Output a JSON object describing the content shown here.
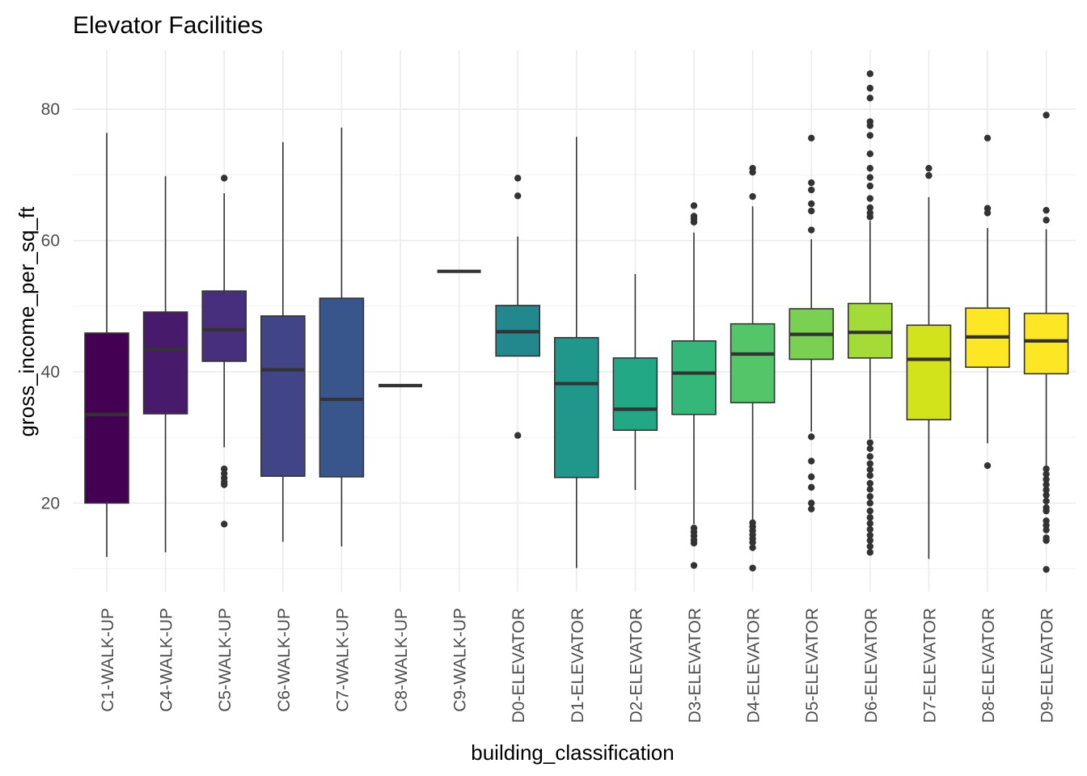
{
  "chart_data": {
    "type": "boxplot",
    "title": "Elevator Facilities",
    "xlabel": "building_classification",
    "ylabel": "gross_income_per_sq_ft",
    "ylim": [
      6.5,
      89
    ],
    "yticks": [
      20,
      40,
      60,
      80
    ],
    "grid": true,
    "legend": "none",
    "categories": [
      "C1-WALK-UP",
      "C4-WALK-UP",
      "C5-WALK-UP",
      "C6-WALK-UP",
      "C7-WALK-UP",
      "C8-WALK-UP",
      "C9-WALK-UP",
      "D0-ELEVATOR",
      "D1-ELEVATOR",
      "D2-ELEVATOR",
      "D3-ELEVATOR",
      "D4-ELEVATOR",
      "D5-ELEVATOR",
      "D6-ELEVATOR",
      "D7-ELEVATOR",
      "D8-ELEVATOR",
      "D9-ELEVATOR"
    ],
    "colors": [
      "#440154",
      "#481a6c",
      "#472f7d",
      "#414487",
      "#39568c",
      "#31688e",
      "#2a788e",
      "#23888e",
      "#1f988b",
      "#22a884",
      "#35b779",
      "#54c568",
      "#7ad151",
      "#a5db36",
      "#d2e21b",
      "#fde725",
      "#fde725"
    ],
    "boxes": [
      {
        "min": 11.8,
        "q1": 20.0,
        "median": 33.5,
        "q3": 45.9,
        "max": 76.4,
        "outliers": []
      },
      {
        "min": 12.5,
        "q1": 33.6,
        "median": 43.4,
        "q3": 49.1,
        "max": 69.8,
        "outliers": []
      },
      {
        "min": 28.5,
        "q1": 41.6,
        "median": 46.4,
        "q3": 52.3,
        "max": 67.2,
        "outliers": [
          69.5,
          25.2,
          24.5,
          23.8,
          23.2,
          22.8,
          16.8
        ]
      },
      {
        "min": 14.1,
        "q1": 24.1,
        "median": 40.3,
        "q3": 48.5,
        "max": 75.0,
        "outliers": []
      },
      {
        "min": 13.4,
        "q1": 24.0,
        "median": 35.8,
        "q3": 51.2,
        "max": 77.2,
        "outliers": []
      },
      {
        "min": 37.9,
        "q1": 37.9,
        "median": 37.9,
        "q3": 37.9,
        "max": 37.9,
        "outliers": []
      },
      {
        "min": 55.3,
        "q1": 55.3,
        "median": 55.3,
        "q3": 55.3,
        "max": 55.3,
        "outliers": []
      },
      {
        "min": 42.4,
        "q1": 42.4,
        "median": 46.1,
        "q3": 50.1,
        "max": 60.6,
        "outliers": [
          69.5,
          66.8,
          30.3
        ]
      },
      {
        "min": 10.1,
        "q1": 23.9,
        "median": 38.2,
        "q3": 45.2,
        "max": 75.8,
        "outliers": []
      },
      {
        "min": 22.0,
        "q1": 31.1,
        "median": 34.3,
        "q3": 42.1,
        "max": 54.9,
        "outliers": []
      },
      {
        "min": 16.8,
        "q1": 33.5,
        "median": 39.8,
        "q3": 44.7,
        "max": 61.2,
        "outliers": [
          65.3,
          63.7,
          63.3,
          62.8,
          16.2,
          15.6,
          15.0,
          14.4,
          13.9,
          10.5
        ]
      },
      {
        "min": 17.4,
        "q1": 35.3,
        "median": 42.7,
        "q3": 47.3,
        "max": 65.2,
        "outliers": [
          71.0,
          70.4,
          66.7,
          17.0,
          16.4,
          15.8,
          15.2,
          14.6,
          14.0,
          13.2,
          10.1
        ]
      },
      {
        "min": 30.9,
        "q1": 41.9,
        "median": 45.7,
        "q3": 49.6,
        "max": 60.2,
        "outliers": [
          75.6,
          68.8,
          67.7,
          65.6,
          64.5,
          61.6,
          30.1,
          26.4,
          24.0,
          22.4,
          20.0,
          19.1
        ]
      },
      {
        "min": 29.8,
        "q1": 42.1,
        "median": 46.0,
        "q3": 50.4,
        "max": 63.0,
        "outliers": [
          85.4,
          83.2,
          81.7,
          78.1,
          77.5,
          76.0,
          73.2,
          71.0,
          69.6,
          68.3,
          66.4,
          65.0,
          64.2,
          63.6,
          29.2,
          28.3,
          27.1,
          26.0,
          25.1,
          24.2,
          23.0,
          22.1,
          21.0,
          20.0,
          18.8,
          17.8,
          16.9,
          16.0,
          15.1,
          14.3,
          13.4,
          12.5
        ]
      },
      {
        "min": 11.5,
        "q1": 32.7,
        "median": 41.9,
        "q3": 47.1,
        "max": 66.6,
        "outliers": [
          71.0,
          69.9
        ]
      },
      {
        "min": 29.1,
        "q1": 40.7,
        "median": 45.3,
        "q3": 49.7,
        "max": 61.9,
        "outliers": [
          75.6,
          64.9,
          64.2,
          25.7
        ]
      },
      {
        "min": 25.6,
        "q1": 39.7,
        "median": 44.7,
        "q3": 48.9,
        "max": 61.7,
        "outliers": [
          79.1,
          64.6,
          63.1,
          25.2,
          24.4,
          23.6,
          22.8,
          22.0,
          21.2,
          20.3,
          19.3,
          18.8,
          17.3,
          16.6,
          15.9,
          14.7,
          14.3,
          9.9
        ]
      }
    ]
  }
}
